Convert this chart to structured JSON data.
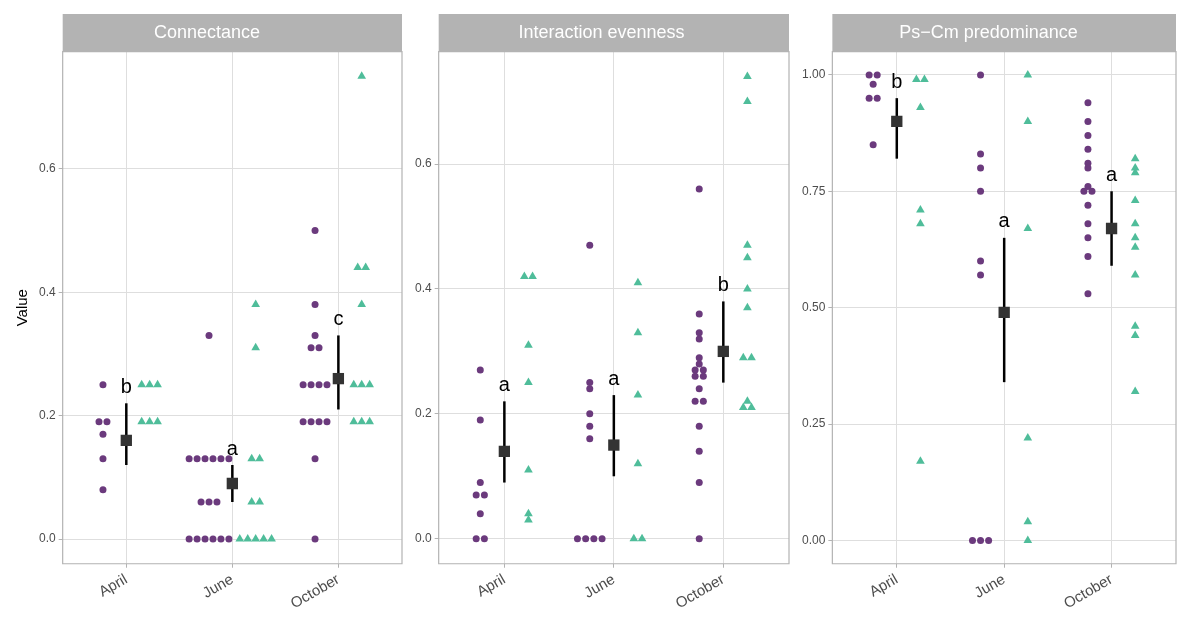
{
  "chart_data": [
    {
      "type": "scatter",
      "title": "Connectance",
      "ylabel": "Value",
      "categories": [
        "April",
        "June",
        "October"
      ],
      "ylim": [
        -0.04,
        0.79
      ],
      "yticks": [
        {
          "value": 0,
          "label": "0.0"
        },
        {
          "value": 0.2,
          "label": "0.2"
        },
        {
          "value": 0.4,
          "label": "0.4"
        },
        {
          "value": 0.6,
          "label": "0.6"
        }
      ],
      "grid": true,
      "series": [
        {
          "marker": "circle",
          "color": "#6b3a7d",
          "x": [
            "April",
            "April",
            "April",
            "April",
            "April",
            "April",
            "June",
            "June",
            "June",
            "June",
            "June",
            "June",
            "June",
            "June",
            "June",
            "June",
            "June",
            "June",
            "June",
            "June",
            "June",
            "June",
            "October",
            "October",
            "October",
            "October",
            "October",
            "October",
            "October",
            "October",
            "October",
            "October",
            "October",
            "October",
            "October",
            "October",
            "October"
          ],
          "values": [
            0.25,
            0.19,
            0.19,
            0.17,
            0.13,
            0.08,
            0.13,
            0.13,
            0.13,
            0.13,
            0.13,
            0.13,
            0.06,
            0.06,
            0.06,
            0,
            0,
            0,
            0,
            0,
            0,
            0.33,
            0.5,
            0.38,
            0.33,
            0.31,
            0.31,
            0.25,
            0.25,
            0.25,
            0.25,
            0.19,
            0.19,
            0.19,
            0.19,
            0.13,
            0
          ]
        },
        {
          "marker": "triangle",
          "color": "#4fbd9a",
          "x": [
            "April",
            "April",
            "April",
            "April",
            "April",
            "April",
            "June",
            "June",
            "June",
            "June",
            "June",
            "June",
            "June",
            "June",
            "June",
            "June",
            "June",
            "October",
            "October",
            "October",
            "October",
            "October",
            "October",
            "October",
            "October",
            "October",
            "October"
          ],
          "values": [
            0.25,
            0.25,
            0.25,
            0.19,
            0.19,
            0.19,
            0.38,
            0.31,
            0.13,
            0.13,
            0.06,
            0.06,
            0,
            0,
            0,
            0,
            0,
            0.75,
            0.44,
            0.44,
            0.38,
            0.25,
            0.25,
            0.25,
            0.19,
            0.19,
            0.19
          ]
        },
        {
          "marker": "square",
          "color": "#333333",
          "x": [
            "April",
            "June",
            "October"
          ],
          "values": [
            0.16,
            0.09,
            0.26
          ],
          "errors": [
            [
              0.12,
              0.22
            ],
            [
              0.06,
              0.12
            ],
            [
              0.21,
              0.33
            ]
          ]
        }
      ],
      "annotations": [
        "b",
        "a",
        "c"
      ]
    },
    {
      "type": "scatter",
      "title": "Interaction evenness",
      "categories": [
        "April",
        "June",
        "October"
      ],
      "ylim": [
        -0.04,
        0.78
      ],
      "yticks": [
        {
          "value": 0,
          "label": "0.0"
        },
        {
          "value": 0.2,
          "label": "0.2"
        },
        {
          "value": 0.4,
          "label": "0.4"
        },
        {
          "value": 0.6,
          "label": "0.6"
        }
      ],
      "grid": true,
      "series": [
        {
          "marker": "circle",
          "color": "#6b3a7d",
          "x": [
            "April",
            "April",
            "April",
            "April",
            "April",
            "April",
            "April",
            "April",
            "June",
            "June",
            "June",
            "June",
            "June",
            "June",
            "June",
            "June",
            "June",
            "June",
            "October",
            "October",
            "October",
            "October",
            "October",
            "October",
            "October",
            "October",
            "October",
            "October",
            "October",
            "October",
            "October",
            "October",
            "October",
            "October",
            "October"
          ],
          "values": [
            0.27,
            0.19,
            0.09,
            0.07,
            0.07,
            0.04,
            0,
            0,
            0.47,
            0.25,
            0.24,
            0.2,
            0.18,
            0.16,
            0,
            0,
            0,
            0,
            0.56,
            0.36,
            0.33,
            0.32,
            0.29,
            0.28,
            0.27,
            0.27,
            0.26,
            0.26,
            0.24,
            0.22,
            0.22,
            0.18,
            0.14,
            0.09,
            0
          ]
        },
        {
          "marker": "triangle",
          "color": "#4fbd9a",
          "x": [
            "April",
            "April",
            "April",
            "April",
            "April",
            "April",
            "April",
            "June",
            "June",
            "June",
            "June",
            "June",
            "June",
            "October",
            "October",
            "October",
            "October",
            "October",
            "October",
            "October",
            "October",
            "October",
            "October",
            "October"
          ],
          "values": [
            0.42,
            0.42,
            0.31,
            0.25,
            0.11,
            0.03,
            0.04,
            0.41,
            0.33,
            0.23,
            0.12,
            0,
            0,
            0.74,
            0.7,
            0.47,
            0.45,
            0.4,
            0.37,
            0.29,
            0.29,
            0.21,
            0.21,
            0.22
          ]
        },
        {
          "marker": "square",
          "color": "#333333",
          "x": [
            "April",
            "June",
            "October"
          ],
          "values": [
            0.14,
            0.15,
            0.3
          ],
          "errors": [
            [
              0.09,
              0.22
            ],
            [
              0.1,
              0.23
            ],
            [
              0.25,
              0.38
            ]
          ]
        }
      ],
      "annotations": [
        "a",
        "a",
        "b"
      ]
    },
    {
      "type": "scatter",
      "title": "Ps−Cm predominance",
      "categories": [
        "April",
        "June",
        "October"
      ],
      "ylim": [
        -0.05,
        1.05
      ],
      "yticks": [
        {
          "value": 0,
          "label": "0.00"
        },
        {
          "value": 0.25,
          "label": "0.25"
        },
        {
          "value": 0.5,
          "label": "0.50"
        },
        {
          "value": 0.75,
          "label": "0.75"
        },
        {
          "value": 1,
          "label": "1.00"
        }
      ],
      "grid": true,
      "series": [
        {
          "marker": "circle",
          "color": "#6b3a7d",
          "x": [
            "April",
            "April",
            "April",
            "April",
            "April",
            "April",
            "June",
            "June",
            "June",
            "June",
            "June",
            "June",
            "June",
            "June",
            "June",
            "October",
            "October",
            "October",
            "October",
            "October",
            "October",
            "October",
            "October",
            "October",
            "October",
            "October",
            "October",
            "October",
            "October"
          ],
          "values": [
            0.98,
            1.0,
            1.0,
            0.95,
            0.95,
            0.85,
            1.0,
            0.83,
            0.8,
            0.75,
            0.6,
            0.57,
            0,
            0,
            0,
            0.94,
            0.9,
            0.87,
            0.84,
            0.81,
            0.8,
            0.76,
            0.75,
            0.75,
            0.72,
            0.68,
            0.65,
            0.61,
            0.53
          ]
        },
        {
          "marker": "triangle",
          "color": "#4fbd9a",
          "x": [
            "April",
            "April",
            "April",
            "April",
            "April",
            "April",
            "June",
            "June",
            "June",
            "June",
            "June",
            "June",
            "October",
            "October",
            "October",
            "October",
            "October",
            "October",
            "October",
            "October",
            "October",
            "October",
            "October"
          ],
          "values": [
            0.99,
            0.99,
            0.93,
            0.71,
            0.68,
            0.17,
            1.0,
            0.9,
            0.67,
            0.22,
            0.04,
            0,
            0.82,
            0.8,
            0.79,
            0.73,
            0.68,
            0.65,
            0.63,
            0.57,
            0.46,
            0.44,
            0.32
          ]
        },
        {
          "marker": "square",
          "color": "#333333",
          "x": [
            "April",
            "June",
            "October"
          ],
          "values": [
            0.9,
            0.49,
            0.67
          ],
          "errors": [
            [
              0.82,
              0.95
            ],
            [
              0.34,
              0.65
            ],
            [
              0.59,
              0.75
            ]
          ]
        }
      ],
      "annotations": [
        "b",
        "a",
        "a"
      ]
    }
  ]
}
